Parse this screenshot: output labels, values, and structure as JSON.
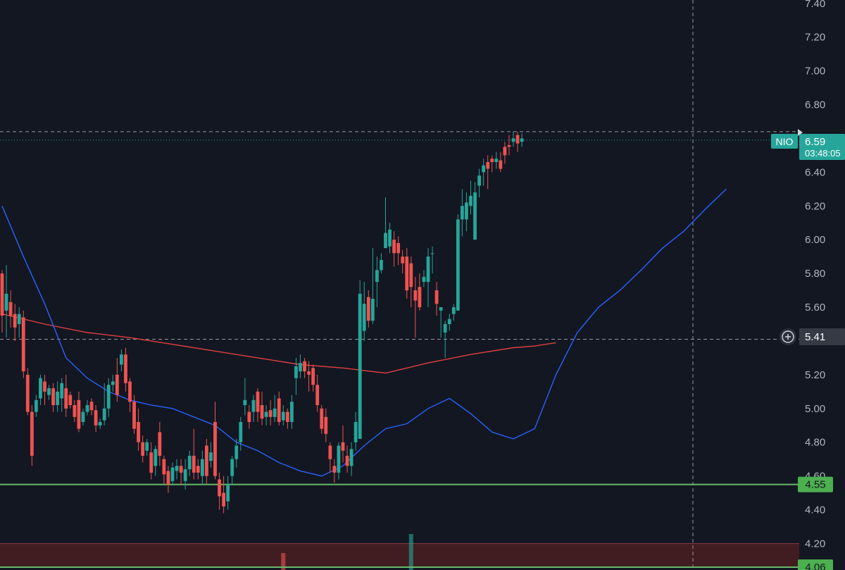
{
  "chart_data": {
    "type": "candlestick",
    "symbol": "NIO",
    "ylim": [
      4.06,
      7.42
    ],
    "y_ticks": [
      "7.40",
      "7.20",
      "7.00",
      "6.80",
      "6.60",
      "6.40",
      "6.20",
      "6.00",
      "5.80",
      "5.60",
      "5.40",
      "5.20",
      "5.00",
      "4.80",
      "4.60",
      "4.40",
      "4.20"
    ],
    "last_price": {
      "symbol_label": "NIO",
      "value": "6.59",
      "countdown": "03:48:05"
    },
    "crosshair": {
      "price": 5.41,
      "label": "5.41"
    },
    "dashed_high_line": 6.64,
    "levels": [
      {
        "name": "support-4.55",
        "price": 4.55,
        "label": "4.55"
      },
      {
        "name": "support-4.06",
        "price": 4.06,
        "label": "4.06"
      }
    ],
    "zone": {
      "from": 4.06,
      "to": 4.2
    },
    "candles": [
      [
        5.8,
        5.55,
        5.45,
        5.82
      ],
      [
        5.58,
        5.68,
        5.42,
        5.85
      ],
      [
        5.63,
        5.55,
        5.48,
        5.7
      ],
      [
        5.56,
        5.48,
        5.4,
        5.62
      ],
      [
        5.5,
        5.56,
        5.42,
        5.6
      ],
      [
        5.54,
        5.22,
        5.18,
        5.58
      ],
      [
        5.2,
        4.98,
        4.96,
        5.24
      ],
      [
        4.98,
        4.72,
        4.66,
        5.02
      ],
      [
        4.98,
        5.05,
        4.95,
        5.08
      ],
      [
        5.06,
        5.18,
        5.02,
        5.2
      ],
      [
        5.16,
        5.1,
        5.02,
        5.2
      ],
      [
        5.08,
        5.12,
        5.05,
        5.14
      ],
      [
        5.12,
        5.02,
        4.98,
        5.15
      ],
      [
        5.02,
        5.1,
        4.98,
        5.16
      ],
      [
        5.06,
        5.15,
        4.98,
        5.18
      ],
      [
        5.12,
        5.0,
        4.95,
        5.2
      ],
      [
        5.08,
        5.02,
        5.0,
        5.1
      ],
      [
        5.02,
        4.95,
        4.92,
        5.05
      ],
      [
        5.05,
        4.88,
        4.86,
        5.1
      ],
      [
        4.92,
        4.98,
        4.9,
        5.0
      ],
      [
        4.98,
        5.02,
        4.96,
        5.05
      ],
      [
        5.04,
        4.99,
        4.96,
        5.06
      ],
      [
        4.99,
        4.9,
        4.86,
        5.02
      ],
      [
        4.9,
        4.92,
        4.88,
        4.94
      ],
      [
        4.93,
        5.0,
        4.9,
        5.15
      ],
      [
        5.0,
        5.14,
        4.95,
        5.18
      ],
      [
        5.14,
        5.16,
        5.1,
        5.2
      ],
      [
        5.2,
        5.08,
        5.04,
        5.3
      ],
      [
        5.26,
        5.32,
        5.22,
        5.35
      ],
      [
        5.32,
        5.15,
        5.1,
        5.36
      ],
      [
        5.16,
        5.04,
        4.98,
        5.18
      ],
      [
        5.04,
        4.88,
        4.85,
        5.08
      ],
      [
        4.92,
        4.8,
        4.75,
        5.0
      ],
      [
        4.8,
        4.72,
        4.68,
        4.84
      ],
      [
        4.75,
        4.8,
        4.72,
        4.82
      ],
      [
        4.74,
        4.62,
        4.58,
        4.8
      ],
      [
        4.66,
        4.76,
        4.6,
        4.78
      ],
      [
        4.86,
        4.72,
        4.66,
        4.92
      ],
      [
        4.7,
        4.61,
        4.55,
        4.72
      ],
      [
        4.63,
        4.55,
        4.5,
        4.66
      ],
      [
        4.57,
        4.65,
        4.55,
        4.68
      ],
      [
        4.63,
        4.66,
        4.58,
        4.7
      ],
      [
        4.66,
        4.62,
        4.55,
        4.7
      ],
      [
        4.57,
        4.64,
        4.52,
        4.7
      ],
      [
        4.64,
        4.72,
        4.6,
        4.75
      ],
      [
        4.72,
        4.62,
        4.58,
        4.88
      ],
      [
        4.66,
        4.62,
        4.58,
        4.7
      ],
      [
        4.6,
        4.7,
        4.55,
        4.75
      ],
      [
        4.78,
        4.6,
        4.55,
        4.82
      ],
      [
        4.69,
        4.74,
        4.65,
        4.8
      ],
      [
        4.92,
        4.6,
        4.58,
        5.04
      ],
      [
        4.58,
        4.48,
        4.4,
        4.62
      ],
      [
        4.5,
        4.42,
        4.38,
        4.6
      ],
      [
        4.45,
        4.55,
        4.4,
        4.6
      ],
      [
        4.6,
        4.7,
        4.55,
        4.72
      ],
      [
        4.7,
        4.78,
        4.65,
        4.82
      ],
      [
        4.8,
        4.92,
        4.75,
        4.95
      ],
      [
        5.02,
        5.05,
        4.96,
        5.18
      ],
      [
        4.98,
        4.92,
        4.88,
        5.02
      ],
      [
        4.98,
        5.05,
        4.92,
        5.08
      ],
      [
        5.1,
        4.98,
        4.92,
        5.12
      ],
      [
        5.02,
        4.94,
        4.9,
        5.1
      ],
      [
        4.95,
        4.98,
        4.9,
        5.02
      ],
      [
        4.99,
        4.95,
        4.9,
        5.05
      ],
      [
        4.95,
        5.0,
        4.92,
        5.08
      ],
      [
        5.06,
        4.92,
        4.9,
        5.1
      ],
      [
        4.93,
        4.98,
        4.9,
        5.02
      ],
      [
        4.98,
        4.92,
        4.88,
        5.0
      ],
      [
        4.92,
        5.04,
        4.88,
        5.08
      ],
      [
        5.18,
        5.25,
        5.08,
        5.3
      ],
      [
        5.22,
        5.27,
        5.18,
        5.32
      ],
      [
        5.28,
        5.22,
        5.18,
        5.3
      ],
      [
        5.22,
        5.2,
        5.1,
        5.28
      ],
      [
        5.24,
        5.14,
        5.1,
        5.26
      ],
      [
        5.14,
        5.02,
        4.98,
        5.2
      ],
      [
        5.0,
        4.88,
        4.85,
        5.02
      ],
      [
        4.95,
        4.85,
        4.8,
        5.0
      ],
      [
        4.78,
        4.7,
        4.62,
        4.8
      ],
      [
        4.66,
        4.62,
        4.56,
        4.7
      ],
      [
        4.62,
        4.78,
        4.58,
        4.8
      ],
      [
        4.8,
        4.75,
        4.68,
        4.9
      ],
      [
        4.72,
        4.66,
        4.62,
        4.78
      ],
      [
        4.66,
        4.76,
        4.6,
        4.8
      ],
      [
        4.8,
        4.92,
        4.75,
        4.98
      ],
      [
        4.82,
        5.68,
        4.82,
        5.76
      ],
      [
        5.46,
        5.62,
        5.4,
        5.75
      ],
      [
        5.66,
        5.52,
        5.48,
        5.7
      ],
      [
        5.52,
        5.65,
        5.5,
        5.95
      ],
      [
        5.75,
        5.82,
        5.6,
        5.9
      ],
      [
        5.82,
        5.88,
        5.8,
        5.92
      ],
      [
        5.95,
        6.04,
        5.95,
        6.25
      ],
      [
        5.96,
        6.06,
        5.92,
        6.1
      ],
      [
        6.0,
        5.92,
        5.84,
        6.05
      ],
      [
        5.98,
        5.92,
        5.85,
        6.02
      ],
      [
        5.9,
        5.86,
        5.8,
        5.94
      ],
      [
        5.9,
        5.7,
        5.65,
        5.95
      ],
      [
        5.86,
        5.72,
        5.6,
        5.9
      ],
      [
        5.7,
        5.64,
        5.42,
        5.78
      ],
      [
        5.72,
        5.6,
        5.58,
        5.8
      ],
      [
        5.75,
        5.78,
        5.72,
        5.82
      ],
      [
        5.75,
        5.9,
        5.6,
        5.95
      ],
      [
        5.92,
        5.92,
        5.8,
        5.96
      ],
      [
        5.7,
        5.62,
        5.55,
        5.75
      ],
      [
        5.58,
        5.6,
        5.42,
        5.6
      ],
      [
        5.45,
        5.5,
        5.3,
        5.52
      ],
      [
        5.5,
        5.53,
        5.46,
        5.56
      ],
      [
        5.56,
        5.6,
        5.52,
        5.62
      ],
      [
        5.58,
        6.12,
        5.58,
        6.15
      ],
      [
        6.12,
        6.2,
        6.02,
        6.3
      ],
      [
        6.12,
        6.22,
        6.05,
        6.28
      ],
      [
        6.2,
        6.26,
        6.15,
        6.35
      ],
      [
        6.0,
        6.28,
        6.0,
        6.34
      ],
      [
        6.32,
        6.38,
        6.25,
        6.42
      ],
      [
        6.4,
        6.44,
        6.32,
        6.48
      ],
      [
        6.46,
        6.42,
        6.3,
        6.5
      ],
      [
        6.48,
        6.46,
        6.4,
        6.5
      ],
      [
        6.46,
        6.48,
        6.42,
        6.52
      ],
      [
        6.47,
        6.42,
        6.4,
        6.52
      ],
      [
        6.55,
        6.5,
        6.45,
        6.58
      ],
      [
        6.56,
        6.55,
        6.5,
        6.62
      ],
      [
        6.58,
        6.6,
        6.55,
        6.64
      ],
      [
        6.62,
        6.57,
        6.52,
        6.64
      ],
      [
        6.58,
        6.6,
        6.55,
        6.63
      ]
    ],
    "sma_short": [
      [
        0,
        6.2
      ],
      [
        5,
        5.9
      ],
      [
        10,
        5.62
      ],
      [
        15,
        5.3
      ],
      [
        20,
        5.18
      ],
      [
        25,
        5.1
      ],
      [
        30,
        5.05
      ],
      [
        35,
        5.02
      ],
      [
        40,
        5.0
      ],
      [
        45,
        4.95
      ],
      [
        50,
        4.9
      ],
      [
        55,
        4.8
      ],
      [
        60,
        4.75
      ],
      [
        65,
        4.68
      ],
      [
        70,
        4.63
      ],
      [
        75,
        4.6
      ],
      [
        80,
        4.66
      ],
      [
        85,
        4.78
      ],
      [
        90,
        4.88
      ],
      [
        95,
        4.91
      ],
      [
        100,
        5.0
      ],
      [
        105,
        5.06
      ],
      [
        110,
        4.97
      ],
      [
        115,
        4.86
      ],
      [
        120,
        4.82
      ],
      [
        125,
        4.88
      ],
      [
        130,
        5.2
      ],
      [
        135,
        5.45
      ],
      [
        140,
        5.6
      ],
      [
        145,
        5.7
      ],
      [
        150,
        5.82
      ],
      [
        155,
        5.95
      ],
      [
        160,
        6.05
      ],
      [
        165,
        6.18
      ],
      [
        170,
        6.3
      ]
    ],
    "sma_long": [
      [
        0,
        5.56
      ],
      [
        10,
        5.5
      ],
      [
        20,
        5.45
      ],
      [
        30,
        5.42
      ],
      [
        40,
        5.38
      ],
      [
        50,
        5.34
      ],
      [
        60,
        5.3
      ],
      [
        70,
        5.26
      ],
      [
        80,
        5.24
      ],
      [
        90,
        5.21
      ],
      [
        95,
        5.24
      ],
      [
        100,
        5.27
      ],
      [
        110,
        5.32
      ],
      [
        120,
        5.36
      ],
      [
        125,
        5.37
      ],
      [
        130,
        5.39
      ]
    ],
    "volume": [
      {
        "index": 66,
        "color": "#ef5350",
        "height_frac": 0.4
      },
      {
        "index": 96,
        "color": "#26a69a",
        "height_frac": 0.85
      }
    ],
    "colors": {
      "background": "#131722",
      "up": "#26a69a",
      "down": "#ef5350",
      "sma_short": "#2962ff",
      "sma_long": "#e0403f",
      "level": "#66bb6a",
      "level_label_bg": "#4caf50",
      "zone": "#4a1e22",
      "axis_text": "#b2b5be",
      "dashed": "#9598a1"
    }
  }
}
